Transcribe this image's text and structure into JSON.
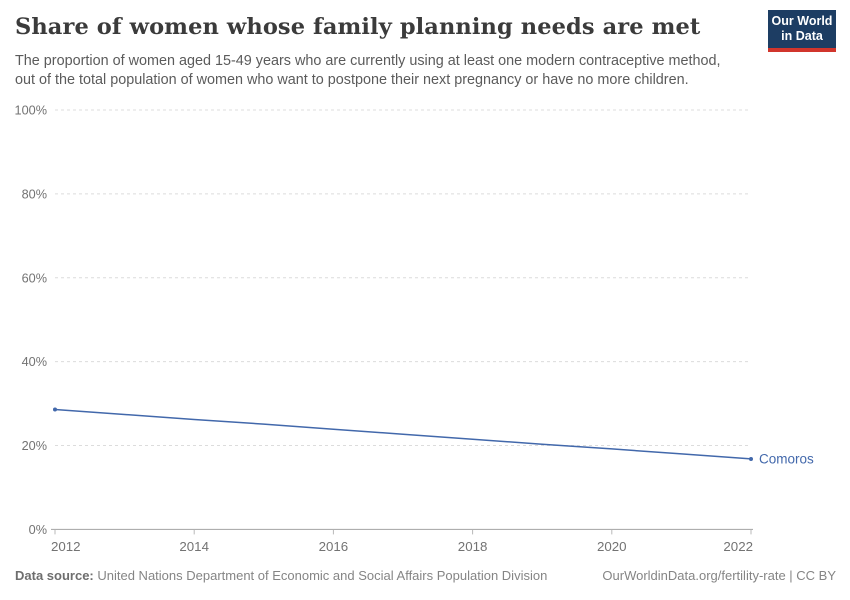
{
  "header": {
    "title": "Share of women whose family planning needs are met",
    "subtitle_lines": [
      "The proportion of women aged 15-49 years who are currently using at least one modern contraceptive method,",
      "out of the total population of women who want to postpone their next pregnancy or have no more children."
    ],
    "logo": {
      "line1": "Our World",
      "line2": "in Data",
      "bg": "#1d3d63",
      "stripe": "#d1352c"
    }
  },
  "footer": {
    "source_label": "Data source:",
    "source_text": " United Nations Department of Economic and Social Affairs Population Division",
    "right_text": "OurWorldinData.org/fertility-rate | CC BY"
  },
  "chart_data": {
    "type": "line",
    "title": "Share of women whose family planning needs are met",
    "x": [
      2012,
      2013,
      2014,
      2015,
      2016,
      2017,
      2018,
      2019,
      2020,
      2021,
      2022
    ],
    "series": [
      {
        "name": "Comoros",
        "color": "#4268ab",
        "values": [
          28.6,
          27.4,
          26.2,
          25.1,
          23.9,
          22.7,
          21.5,
          20.3,
          19.2,
          18.0,
          16.8
        ]
      }
    ],
    "xticks": [
      2012,
      2014,
      2016,
      2018,
      2020,
      2022
    ],
    "yticks": [
      0,
      20,
      40,
      60,
      80,
      100
    ],
    "ytick_suffix": "%",
    "xlim": [
      2012,
      2022
    ],
    "ylim": [
      0,
      100
    ],
    "grid": "horizontal-dashed",
    "grid_color": "#dcdcdc",
    "axis_color": "#a3a3a3",
    "tick_color": "#b8b8b8",
    "label_color": "#737373",
    "legend_position": "end-of-line-label"
  }
}
